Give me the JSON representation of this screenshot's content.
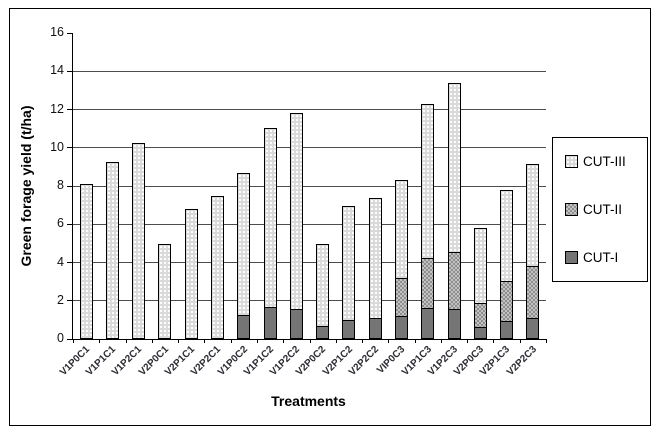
{
  "chart_data": {
    "type": "bar",
    "stacked": true,
    "title": "",
    "xlabel": "Treatments",
    "ylabel": "Green forage yield (t/ha)",
    "ylim": [
      0,
      16
    ],
    "yticks": [
      0,
      2,
      4,
      6,
      8,
      10,
      12,
      14,
      16
    ],
    "grid": true,
    "categories": [
      "V1P0C1",
      "V1P1C1",
      "V1P2C1",
      "V2P0C1",
      "V2P1C1",
      "V2P2C1",
      "V1P0C2",
      "V1P1C2",
      "V1P2C2",
      "V2P0C2",
      "V2P1C2",
      "V2P2C2",
      "VIP0C3",
      "V1P1C3",
      "V1P2C3",
      "V2P0C3",
      "V2P1C3",
      "V2P2C3"
    ],
    "series": [
      {
        "name": "CUT-I",
        "pattern": "solid-dark",
        "color": "#757575",
        "values": [
          0,
          0,
          0,
          0,
          0,
          0,
          1.25,
          1.7,
          1.55,
          0.7,
          1.0,
          1.1,
          1.2,
          1.6,
          1.55,
          0.65,
          0.95,
          1.1
        ]
      },
      {
        "name": "CUT-II",
        "pattern": "checker",
        "color": "#a8a8a8",
        "values": [
          0,
          0,
          0,
          0,
          0,
          0,
          0,
          0,
          0,
          0,
          0,
          0,
          2.05,
          2.7,
          3.05,
          1.3,
          2.15,
          2.75
        ]
      },
      {
        "name": "CUT-III",
        "pattern": "dots",
        "color": "#d9d9d9",
        "values": [
          8.1,
          9.25,
          10.25,
          4.95,
          6.8,
          7.5,
          7.5,
          9.4,
          10.3,
          4.3,
          6.0,
          6.35,
          5.15,
          8.1,
          8.9,
          3.95,
          4.8,
          5.4
        ]
      }
    ],
    "legend": {
      "position": "right",
      "entries": [
        "CUT-III",
        "CUT-II",
        "CUT-I"
      ]
    }
  }
}
